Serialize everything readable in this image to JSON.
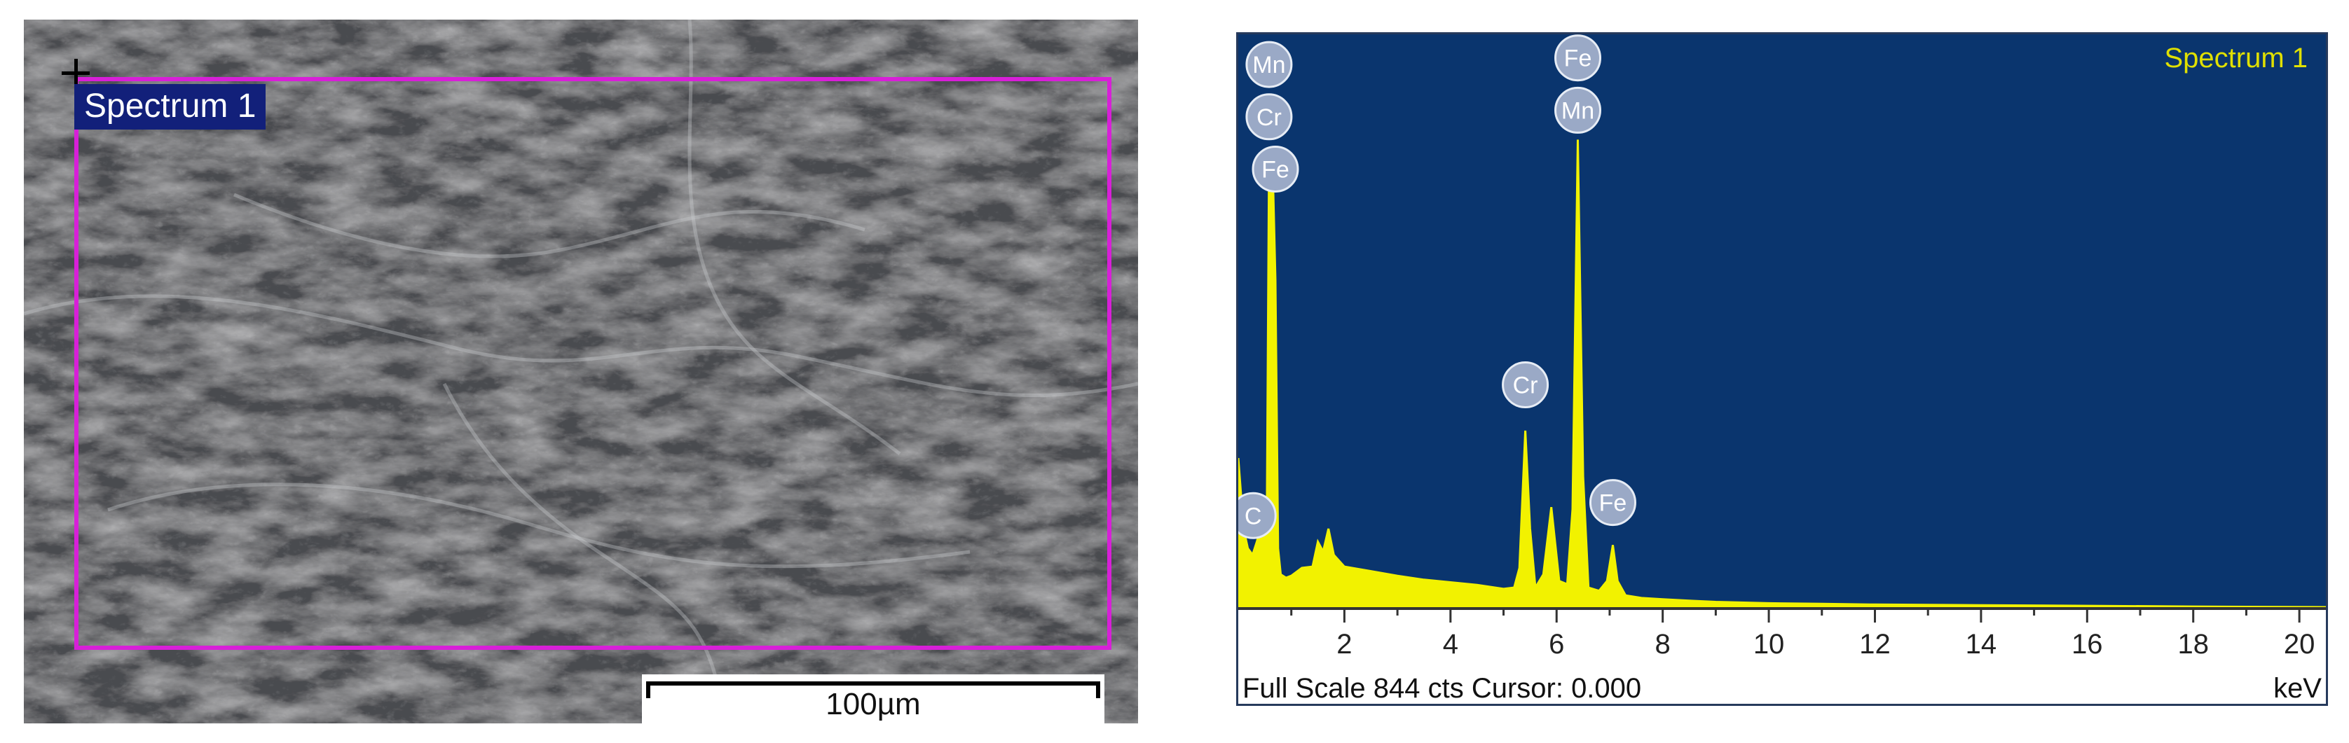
{
  "sem": {
    "region_label": "Spectrum 1",
    "scale_bar_label": "100µm"
  },
  "eds": {
    "footer_text": "Full Scale 844 cts Cursor: 0.000",
    "colors": {
      "background": "#0a356e",
      "spectrum": "#f2f200",
      "peak_label": "#9aa9c6",
      "box": "#d81fd8"
    }
  },
  "chart_data": {
    "type": "area",
    "title": "Spectrum 1",
    "xlabel": "keV",
    "ylabel": "",
    "xlim": [
      0,
      20.5
    ],
    "ylim": [
      0,
      844
    ],
    "x_ticks": [
      2,
      4,
      6,
      8,
      10,
      12,
      14,
      16,
      18,
      20
    ],
    "grid": false,
    "series": [
      {
        "name": "Spectrum 1",
        "x": [
          0.0,
          0.1,
          0.18,
          0.27,
          0.35,
          0.45,
          0.54,
          0.58,
          0.64,
          0.7,
          0.75,
          0.8,
          0.9,
          1.0,
          1.2,
          1.4,
          1.5,
          1.6,
          1.7,
          1.8,
          2.0,
          2.5,
          3.0,
          3.5,
          4.0,
          4.5,
          5.0,
          5.2,
          5.3,
          5.41,
          5.5,
          5.6,
          5.75,
          5.9,
          6.05,
          6.2,
          6.3,
          6.4,
          6.5,
          6.6,
          6.8,
          6.95,
          7.06,
          7.15,
          7.3,
          7.6,
          8.0,
          8.5,
          9.0,
          10.0,
          11.0,
          12.0,
          14.0,
          16.0,
          18.0,
          20.5
        ],
        "y": [
          228,
          120,
          90,
          80,
          100,
          130,
          160,
          680,
          700,
          500,
          90,
          50,
          45,
          48,
          60,
          62,
          100,
          85,
          120,
          80,
          62,
          55,
          48,
          42,
          38,
          34,
          28,
          30,
          60,
          270,
          120,
          30,
          50,
          153,
          40,
          35,
          150,
          715,
          200,
          30,
          25,
          40,
          95,
          40,
          18,
          14,
          12,
          10,
          8,
          6,
          5,
          4,
          3,
          2,
          1,
          0
        ]
      }
    ],
    "peak_labels": [
      {
        "label": "Mn",
        "x": 0.58,
        "y": 830
      },
      {
        "label": "Cr",
        "x": 0.58,
        "y": 750
      },
      {
        "label": "Fe",
        "x": 0.7,
        "y": 670
      },
      {
        "label": "Fe",
        "x": 6.4,
        "y": 840
      },
      {
        "label": "Mn",
        "x": 6.4,
        "y": 760
      },
      {
        "label": "Cr",
        "x": 5.41,
        "y": 340
      },
      {
        "label": "C",
        "x": 0.28,
        "y": 140
      },
      {
        "label": "Fe",
        "x": 7.06,
        "y": 160
      }
    ]
  }
}
